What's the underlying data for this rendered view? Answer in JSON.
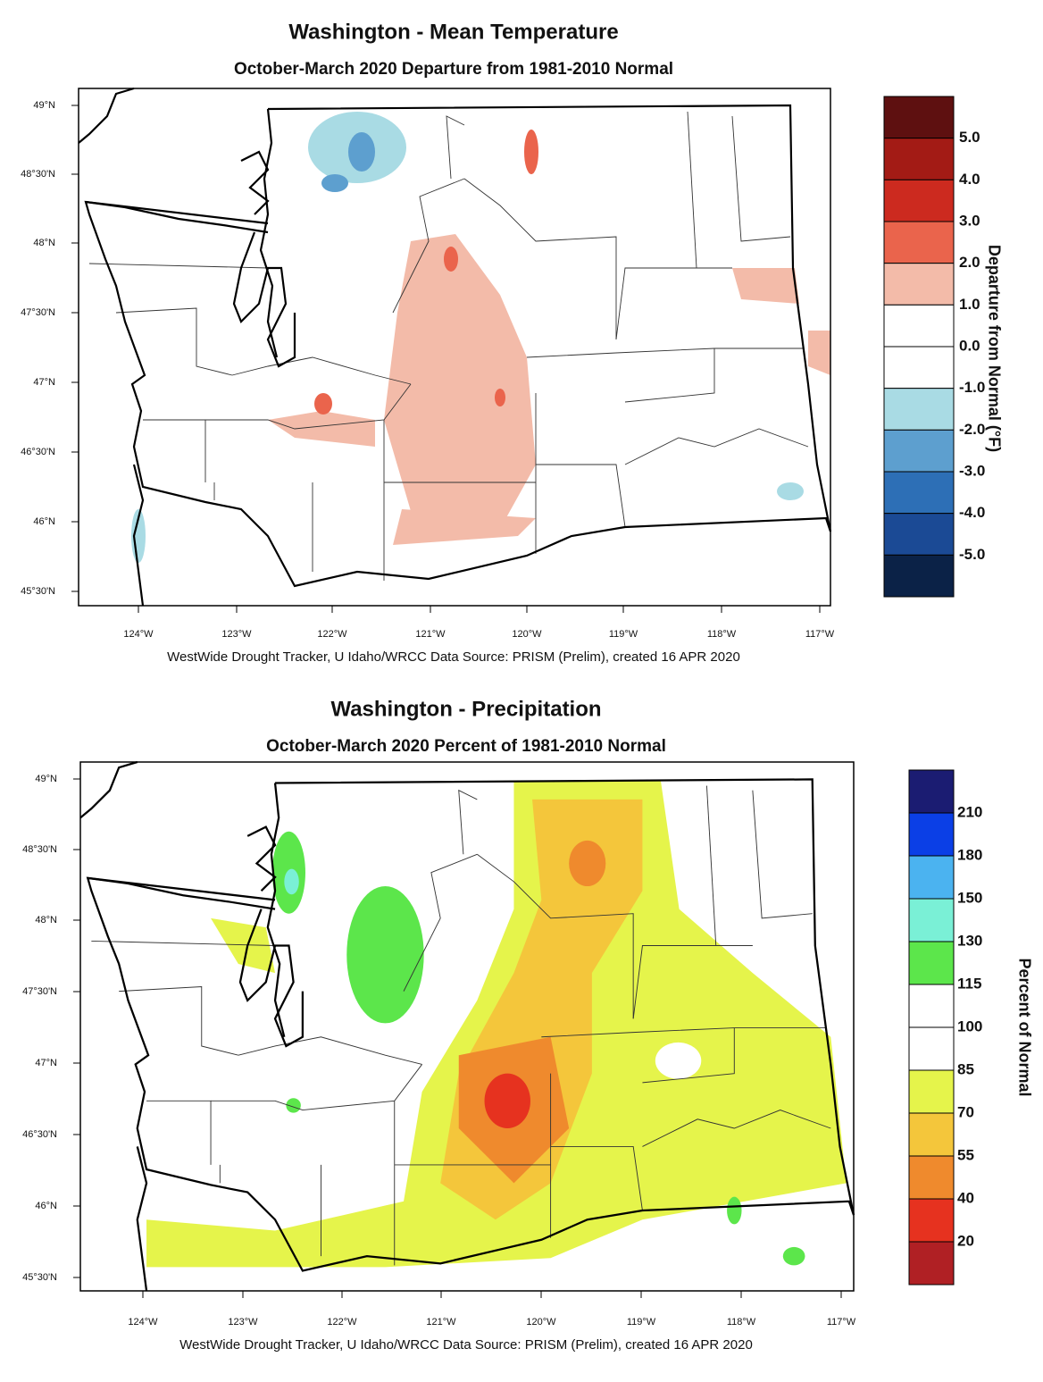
{
  "maps": [
    {
      "title": "Washington - Mean Temperature",
      "subtitle": "October-March 2020  Departure from 1981-2010 Normal",
      "lat_labels": [
        "49°N",
        "48°30'N",
        "48°N",
        "47°30'N",
        "47°N",
        "46°30'N",
        "46°N",
        "45°30'N"
      ],
      "lon_labels": [
        "124°W",
        "123°W",
        "122°W",
        "121°W",
        "120°W",
        "119°W",
        "118°W",
        "117°W"
      ],
      "legend": {
        "title": "Departure from Normal (°F)",
        "labels": [
          "5.0",
          "4.0",
          "3.0",
          "2.0",
          "1.0",
          "0.0",
          "-1.0",
          "-2.0",
          "-3.0",
          "-4.0",
          "-5.0"
        ],
        "colors": [
          "#5e1010",
          "#a31b15",
          "#cc2a1f",
          "#ea644c",
          "#f3bba9",
          "#ffffff",
          "#ffffff",
          "#a9dbe4",
          "#5d9fcf",
          "#2d6fb6",
          "#1b4a95",
          "#0b2247"
        ]
      },
      "credit": "WestWide Drought Tracker, U Idaho/WRCC Data Source: PRISM (Prelim), created 16 APR 2020"
    },
    {
      "title": "Washington - Precipitation",
      "subtitle": "October-March 2020  Percent of 1981-2010 Normal",
      "lat_labels": [
        "49°N",
        "48°30'N",
        "48°N",
        "47°30'N",
        "47°N",
        "46°30'N",
        "46°N",
        "45°30'N"
      ],
      "lon_labels": [
        "124°W",
        "123°W",
        "122°W",
        "121°W",
        "120°W",
        "119°W",
        "118°W",
        "117°W"
      ],
      "legend": {
        "title": "Percent of Normal",
        "labels": [
          "210",
          "180",
          "150",
          "130",
          "115",
          "100",
          "85",
          "70",
          "55",
          "40",
          "20"
        ],
        "colors": [
          "#1b1c72",
          "#0b3fe6",
          "#4bb3f0",
          "#7af0d6",
          "#5ce64b",
          "#ffffff",
          "#ffffff",
          "#e5f44b",
          "#f4c63b",
          "#ef8a2d",
          "#e6321f",
          "#b02024"
        ]
      },
      "credit": "WestWide Drought Tracker, U Idaho/WRCC Data Source: PRISM (Prelim), created 16 APR 2020"
    }
  ]
}
